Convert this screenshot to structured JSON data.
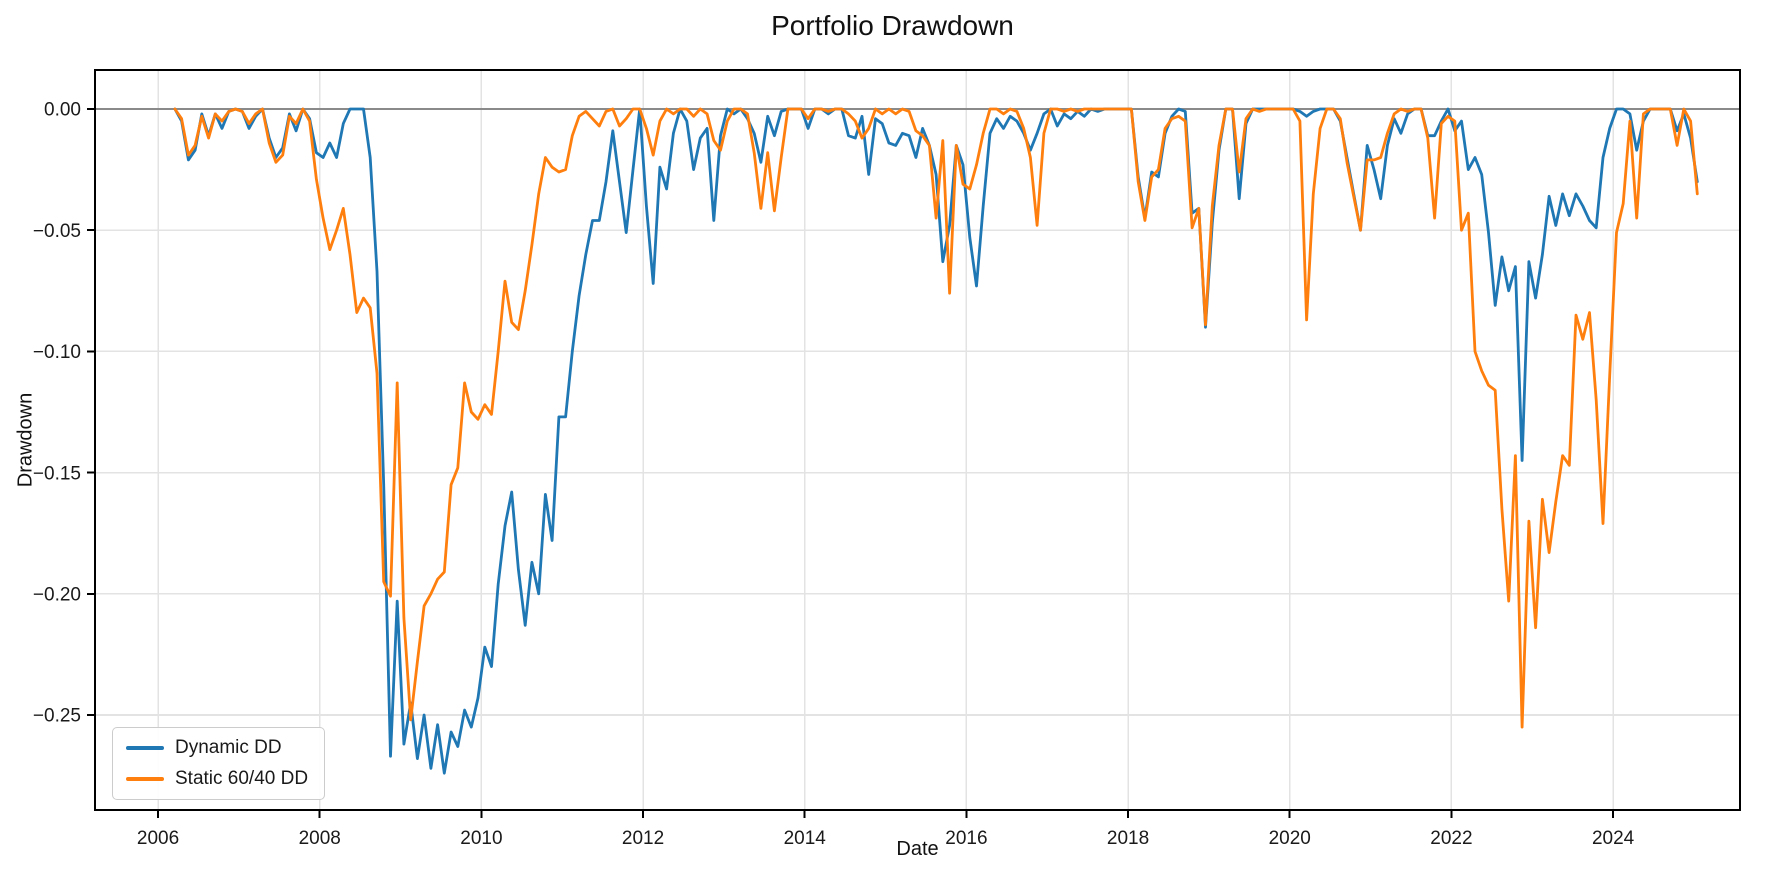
{
  "title": "Portfolio Drawdown",
  "x_axis_label": "Date",
  "y_axis_label": "Drawdown",
  "legend": {
    "items": [
      {
        "label": "Dynamic DD",
        "color": "#1f77b4"
      },
      {
        "label": "Static 60/40 DD",
        "color": "#ff7f0e"
      }
    ]
  },
  "colors": {
    "background": "#ffffff",
    "grid": "#e3e3e3",
    "zero_line": "#8a8a8a",
    "spine": "#000000",
    "tick_text": "#1a1a1a",
    "series_dynamic": "#1f77b4",
    "series_static": "#ff7f0e"
  },
  "chart_data": {
    "type": "line",
    "title": "Portfolio Drawdown",
    "xlabel": "Date",
    "ylabel": "Drawdown",
    "grid": true,
    "zero_line": true,
    "legend_position": "lower left",
    "x_ticks": [
      2006,
      2008,
      2010,
      2012,
      2014,
      2016,
      2018,
      2020,
      2022,
      2024
    ],
    "x_tick_labels": [
      "2006",
      "2008",
      "2010",
      "2012",
      "2014",
      "2016",
      "2018",
      "2020",
      "2022",
      "2024"
    ],
    "y_ticks": [
      0.0,
      -0.05,
      -0.1,
      -0.15,
      -0.2,
      -0.25
    ],
    "y_tick_labels": [
      "0.00",
      "−0.05",
      "−0.10",
      "−0.15",
      "−0.20",
      "−0.25"
    ],
    "xlim": [
      2005.22,
      2025.57
    ],
    "ylim": [
      -0.2892,
      0.0161
    ],
    "dates": [
      "2006-03",
      "2006-04",
      "2006-05",
      "2006-06",
      "2006-07",
      "2006-08",
      "2006-09",
      "2006-10",
      "2006-11",
      "2006-12",
      "2007-01",
      "2007-02",
      "2007-03",
      "2007-04",
      "2007-05",
      "2007-06",
      "2007-07",
      "2007-08",
      "2007-09",
      "2007-10",
      "2007-11",
      "2007-12",
      "2008-01",
      "2008-02",
      "2008-03",
      "2008-04",
      "2008-05",
      "2008-06",
      "2008-07",
      "2008-08",
      "2008-09",
      "2008-10",
      "2008-11",
      "2008-12",
      "2009-01",
      "2009-02",
      "2009-03",
      "2009-04",
      "2009-05",
      "2009-06",
      "2009-07",
      "2009-08",
      "2009-09",
      "2009-10",
      "2009-11",
      "2009-12",
      "2010-01",
      "2010-02",
      "2010-03",
      "2010-04",
      "2010-05",
      "2010-06",
      "2010-07",
      "2010-08",
      "2010-09",
      "2010-10",
      "2010-11",
      "2010-12",
      "2011-01",
      "2011-02",
      "2011-03",
      "2011-04",
      "2011-05",
      "2011-06",
      "2011-07",
      "2011-08",
      "2011-09",
      "2011-10",
      "2011-11",
      "2011-12",
      "2012-01",
      "2012-02",
      "2012-03",
      "2012-04",
      "2012-05",
      "2012-06",
      "2012-07",
      "2012-08",
      "2012-09",
      "2012-10",
      "2012-11",
      "2012-12",
      "2013-01",
      "2013-02",
      "2013-03",
      "2013-04",
      "2013-05",
      "2013-06",
      "2013-07",
      "2013-08",
      "2013-09",
      "2013-10",
      "2013-11",
      "2013-12",
      "2014-01",
      "2014-02",
      "2014-03",
      "2014-04",
      "2014-05",
      "2014-06",
      "2014-07",
      "2014-08",
      "2014-09",
      "2014-10",
      "2014-11",
      "2014-12",
      "2015-01",
      "2015-02",
      "2015-03",
      "2015-04",
      "2015-05",
      "2015-06",
      "2015-07",
      "2015-08",
      "2015-09",
      "2015-10",
      "2015-11",
      "2015-12",
      "2016-01",
      "2016-02",
      "2016-03",
      "2016-04",
      "2016-05",
      "2016-06",
      "2016-07",
      "2016-08",
      "2016-09",
      "2016-10",
      "2016-11",
      "2016-12",
      "2017-01",
      "2017-02",
      "2017-03",
      "2017-04",
      "2017-05",
      "2017-06",
      "2017-07",
      "2017-08",
      "2017-09",
      "2017-10",
      "2017-11",
      "2017-12",
      "2018-01",
      "2018-02",
      "2018-03",
      "2018-04",
      "2018-05",
      "2018-06",
      "2018-07",
      "2018-08",
      "2018-09",
      "2018-10",
      "2018-11",
      "2018-12",
      "2019-01",
      "2019-02",
      "2019-03",
      "2019-04",
      "2019-05",
      "2019-06",
      "2019-07",
      "2019-08",
      "2019-09",
      "2019-10",
      "2019-11",
      "2019-12",
      "2020-01",
      "2020-02",
      "2020-03",
      "2020-04",
      "2020-05",
      "2020-06",
      "2020-07",
      "2020-08",
      "2020-09",
      "2020-10",
      "2020-11",
      "2020-12",
      "2021-01",
      "2021-02",
      "2021-03",
      "2021-04",
      "2021-05",
      "2021-06",
      "2021-07",
      "2021-08",
      "2021-09",
      "2021-10",
      "2021-11",
      "2021-12",
      "2022-01",
      "2022-02",
      "2022-03",
      "2022-04",
      "2022-05",
      "2022-06",
      "2022-07",
      "2022-08",
      "2022-09",
      "2022-10",
      "2022-11",
      "2022-12",
      "2023-01",
      "2023-02",
      "2023-03",
      "2023-04",
      "2023-05",
      "2023-06",
      "2023-07",
      "2023-08",
      "2023-09",
      "2023-10",
      "2023-11",
      "2023-12",
      "2024-01",
      "2024-02",
      "2024-03",
      "2024-04",
      "2024-05",
      "2024-06",
      "2024-07",
      "2024-08",
      "2024-09",
      "2024-10",
      "2024-11",
      "2024-12",
      "2025-01"
    ],
    "series": [
      {
        "name": "Dynamic DD",
        "color": "#1f77b4",
        "values": [
          0,
          -0.005,
          -0.021,
          -0.017,
          -0.002,
          -0.011,
          -0.002,
          -0.008,
          -0.001,
          0,
          -0.001,
          -0.008,
          -0.003,
          0,
          -0.012,
          -0.02,
          -0.016,
          -0.002,
          -0.009,
          0,
          -0.004,
          -0.018,
          -0.02,
          -0.014,
          -0.02,
          -0.006,
          0,
          0,
          0,
          -0.02,
          -0.067,
          -0.155,
          -0.267,
          -0.203,
          -0.262,
          -0.245,
          -0.268,
          -0.25,
          -0.272,
          -0.254,
          -0.274,
          -0.257,
          -0.263,
          -0.248,
          -0.255,
          -0.243,
          -0.222,
          -0.23,
          -0.196,
          -0.172,
          -0.158,
          -0.19,
          -0.213,
          -0.187,
          -0.2,
          -0.159,
          -0.178,
          -0.127,
          -0.127,
          -0.1,
          -0.077,
          -0.06,
          -0.046,
          -0.046,
          -0.03,
          -0.009,
          -0.03,
          -0.051,
          -0.025,
          0,
          -0.04,
          -0.072,
          -0.024,
          -0.033,
          -0.01,
          0,
          -0.005,
          -0.025,
          -0.012,
          -0.008,
          -0.046,
          -0.011,
          0,
          -0.002,
          0,
          -0.004,
          -0.01,
          -0.022,
          -0.003,
          -0.011,
          -0.001,
          0,
          0,
          0,
          -0.008,
          0,
          0,
          -0.002,
          0,
          0,
          -0.011,
          -0.012,
          -0.003,
          -0.027,
          -0.004,
          -0.006,
          -0.014,
          -0.015,
          -0.01,
          -0.011,
          -0.02,
          -0.008,
          -0.015,
          -0.027,
          -0.063,
          -0.048,
          -0.015,
          -0.023,
          -0.053,
          -0.073,
          -0.04,
          -0.01,
          -0.004,
          -0.008,
          -0.003,
          -0.005,
          -0.01,
          -0.017,
          -0.01,
          -0.002,
          0,
          -0.007,
          -0.002,
          -0.004,
          -0.001,
          -0.003,
          0,
          -0.001,
          0,
          0,
          0,
          0,
          0,
          -0.028,
          -0.045,
          -0.026,
          -0.028,
          -0.01,
          -0.003,
          0,
          -0.001,
          -0.043,
          -0.041,
          -0.09,
          -0.047,
          -0.017,
          0,
          0,
          -0.037,
          -0.006,
          0,
          0,
          0,
          0,
          0,
          0,
          0,
          -0.001,
          -0.003,
          -0.001,
          0,
          0,
          0,
          -0.005,
          -0.02,
          -0.035,
          -0.05,
          -0.015,
          -0.025,
          -0.037,
          -0.015,
          -0.004,
          -0.01,
          -0.002,
          0,
          0,
          -0.011,
          -0.011,
          -0.005,
          0,
          -0.009,
          -0.005,
          -0.025,
          -0.02,
          -0.027,
          -0.051,
          -0.081,
          -0.061,
          -0.075,
          -0.065,
          -0.145,
          -0.063,
          -0.078,
          -0.06,
          -0.036,
          -0.048,
          -0.035,
          -0.044,
          -0.035,
          -0.04,
          -0.046,
          -0.049,
          -0.02,
          -0.008,
          0,
          0,
          -0.002,
          -0.017,
          -0.005,
          0,
          0,
          0,
          0,
          -0.009,
          -0.002,
          -0.012,
          -0.03
        ]
      },
      {
        "name": "Static 60/40 DD",
        "color": "#ff7f0e",
        "values": [
          0,
          -0.004,
          -0.019,
          -0.015,
          -0.003,
          -0.012,
          -0.002,
          -0.005,
          -0.001,
          0,
          -0.001,
          -0.006,
          -0.002,
          0,
          -0.014,
          -0.022,
          -0.019,
          -0.003,
          -0.006,
          0,
          -0.005,
          -0.029,
          -0.045,
          -0.058,
          -0.05,
          -0.041,
          -0.06,
          -0.084,
          -0.078,
          -0.082,
          -0.109,
          -0.195,
          -0.201,
          -0.113,
          -0.21,
          -0.252,
          -0.228,
          -0.205,
          -0.2,
          -0.194,
          -0.191,
          -0.155,
          -0.148,
          -0.113,
          -0.125,
          -0.128,
          -0.122,
          -0.126,
          -0.1,
          -0.071,
          -0.088,
          -0.091,
          -0.075,
          -0.056,
          -0.035,
          -0.02,
          -0.024,
          -0.026,
          -0.025,
          -0.011,
          -0.003,
          -0.001,
          -0.004,
          -0.007,
          -0.001,
          0,
          -0.007,
          -0.004,
          0,
          0,
          -0.008,
          -0.019,
          -0.005,
          0,
          -0.002,
          0,
          0,
          -0.003,
          0,
          -0.002,
          -0.013,
          -0.017,
          -0.005,
          0,
          0,
          -0.002,
          -0.018,
          -0.041,
          -0.018,
          -0.042,
          -0.02,
          0,
          0,
          0,
          -0.004,
          0,
          0,
          -0.001,
          0,
          0,
          -0.002,
          -0.005,
          -0.012,
          -0.008,
          0,
          -0.002,
          0,
          -0.002,
          0,
          -0.001,
          -0.009,
          -0.011,
          -0.015,
          -0.045,
          -0.013,
          -0.076,
          -0.015,
          -0.031,
          -0.033,
          -0.023,
          -0.01,
          0,
          0,
          -0.002,
          0,
          -0.001,
          -0.008,
          -0.02,
          -0.048,
          -0.01,
          0,
          0,
          -0.001,
          0,
          -0.001,
          0,
          0,
          0,
          0,
          0,
          0,
          0,
          0,
          -0.03,
          -0.046,
          -0.028,
          -0.025,
          -0.008,
          -0.004,
          -0.003,
          -0.005,
          -0.049,
          -0.041,
          -0.089,
          -0.04,
          -0.015,
          0,
          0,
          -0.026,
          -0.004,
          0,
          -0.001,
          0,
          0,
          0,
          0,
          0,
          -0.005,
          -0.087,
          -0.035,
          -0.008,
          0,
          0,
          -0.004,
          -0.022,
          -0.036,
          -0.05,
          -0.021,
          -0.021,
          -0.02,
          -0.01,
          -0.002,
          0,
          -0.001,
          0,
          0,
          -0.012,
          -0.045,
          -0.006,
          -0.003,
          -0.005,
          -0.05,
          -0.043,
          -0.1,
          -0.108,
          -0.114,
          -0.116,
          -0.165,
          -0.203,
          -0.143,
          -0.255,
          -0.17,
          -0.214,
          -0.161,
          -0.183,
          -0.162,
          -0.143,
          -0.147,
          -0.085,
          -0.095,
          -0.084,
          -0.12,
          -0.171,
          -0.11,
          -0.051,
          -0.039,
          -0.005,
          -0.045,
          -0.002,
          0,
          0,
          0,
          0,
          -0.015,
          0,
          -0.005,
          -0.035
        ]
      }
    ]
  }
}
